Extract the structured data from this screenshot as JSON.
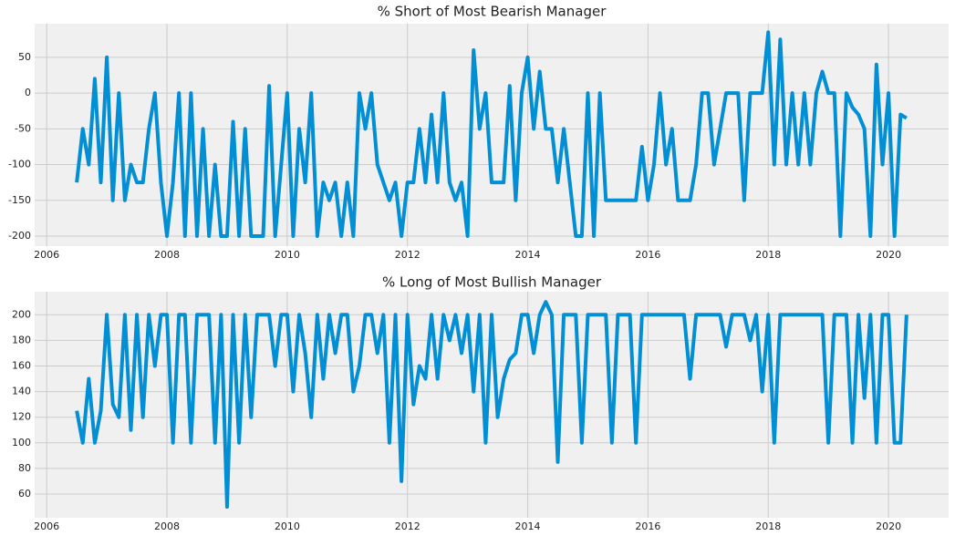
{
  "chart_data": [
    {
      "type": "line",
      "title": "% Short of Most Bearish Manager",
      "x": [
        2006.5,
        2006.6,
        2006.7,
        2006.8,
        2006.9,
        2007.0,
        2007.1,
        2007.2,
        2007.3,
        2007.4,
        2007.5,
        2007.6,
        2007.7,
        2007.8,
        2007.9,
        2008.0,
        2008.1,
        2008.2,
        2008.3,
        2008.4,
        2008.5,
        2008.6,
        2008.7,
        2008.8,
        2008.9,
        2009.0,
        2009.1,
        2009.2,
        2009.3,
        2009.4,
        2009.5,
        2009.6,
        2009.7,
        2009.8,
        2009.9,
        2010.0,
        2010.1,
        2010.2,
        2010.3,
        2010.4,
        2010.5,
        2010.6,
        2010.7,
        2010.8,
        2010.9,
        2011.0,
        2011.1,
        2011.2,
        2011.3,
        2011.4,
        2011.5,
        2011.6,
        2011.7,
        2011.8,
        2011.9,
        2012.0,
        2012.1,
        2012.2,
        2012.3,
        2012.4,
        2012.5,
        2012.6,
        2012.7,
        2012.8,
        2012.9,
        2013.0,
        2013.1,
        2013.2,
        2013.3,
        2013.4,
        2013.5,
        2013.6,
        2013.7,
        2013.8,
        2013.9,
        2014.0,
        2014.1,
        2014.2,
        2014.3,
        2014.4,
        2014.5,
        2014.6,
        2014.7,
        2014.8,
        2014.9,
        2015.0,
        2015.1,
        2015.2,
        2015.3,
        2015.4,
        2015.5,
        2015.6,
        2015.7,
        2015.8,
        2015.9,
        2016.0,
        2016.1,
        2016.2,
        2016.3,
        2016.4,
        2016.5,
        2016.6,
        2016.7,
        2016.8,
        2016.9,
        2017.0,
        2017.1,
        2017.2,
        2017.3,
        2017.4,
        2017.5,
        2017.6,
        2017.7,
        2017.8,
        2017.9,
        2018.0,
        2018.1,
        2018.2,
        2018.3,
        2018.4,
        2018.5,
        2018.6,
        2018.7,
        2018.8,
        2018.9,
        2019.0,
        2019.1,
        2019.2,
        2019.3,
        2019.4,
        2019.5,
        2019.6,
        2019.7,
        2019.8,
        2019.9,
        2020.0,
        2020.1,
        2020.2,
        2020.3
      ],
      "values": [
        -125,
        -50,
        -100,
        20,
        -125,
        50,
        -150,
        0,
        -150,
        -100,
        -125,
        -125,
        -50,
        0,
        -125,
        -200,
        -125,
        0,
        -200,
        0,
        -200,
        -50,
        -200,
        -100,
        -200,
        -200,
        -40,
        -200,
        -50,
        -200,
        -200,
        -200,
        10,
        -200,
        -100,
        0,
        -200,
        -50,
        -125,
        0,
        -200,
        -125,
        -150,
        -125,
        -200,
        -125,
        -200,
        0,
        -50,
        0,
        -100,
        -125,
        -150,
        -125,
        -200,
        -125,
        -125,
        -50,
        -125,
        -30,
        -125,
        0,
        -125,
        -150,
        -125,
        -200,
        60,
        -50,
        0,
        -125,
        -125,
        -125,
        10,
        -150,
        0,
        50,
        -50,
        30,
        -50,
        -50,
        -125,
        -50,
        -125,
        -200,
        -200,
        0,
        -200,
        0,
        -150,
        -150,
        -150,
        -150,
        -150,
        -150,
        -75,
        -150,
        -100,
        0,
        -100,
        -50,
        -150,
        -150,
        -150,
        -100,
        0,
        0,
        -100,
        -50,
        0,
        0,
        0,
        -150,
        0,
        0,
        0,
        85,
        -100,
        75,
        -100,
        0,
        -100,
        0,
        -100,
        0,
        30,
        0,
        0,
        -200,
        0,
        -20,
        -30,
        -50,
        -200,
        40,
        -100,
        0,
        -200,
        -30,
        -35
      ],
      "color": "#008fd5",
      "xlim": [
        2005.8,
        2021.0
      ],
      "ylim": [
        -214,
        97
      ],
      "xticks": [
        2006,
        2008,
        2010,
        2012,
        2014,
        2016,
        2018,
        2020
      ],
      "yticks": [
        -200,
        -150,
        -100,
        -50,
        0,
        50
      ],
      "grid": true
    },
    {
      "type": "line",
      "title": "% Long of Most Bullish Manager",
      "x": [
        2006.5,
        2006.6,
        2006.7,
        2006.8,
        2006.9,
        2007.0,
        2007.1,
        2007.2,
        2007.3,
        2007.4,
        2007.5,
        2007.6,
        2007.7,
        2007.8,
        2007.9,
        2008.0,
        2008.1,
        2008.2,
        2008.3,
        2008.4,
        2008.5,
        2008.6,
        2008.7,
        2008.8,
        2008.9,
        2009.0,
        2009.1,
        2009.2,
        2009.3,
        2009.4,
        2009.5,
        2009.6,
        2009.7,
        2009.8,
        2009.9,
        2010.0,
        2010.1,
        2010.2,
        2010.3,
        2010.4,
        2010.5,
        2010.6,
        2010.7,
        2010.8,
        2010.9,
        2011.0,
        2011.1,
        2011.2,
        2011.3,
        2011.4,
        2011.5,
        2011.6,
        2011.7,
        2011.8,
        2011.9,
        2012.0,
        2012.1,
        2012.2,
        2012.3,
        2012.4,
        2012.5,
        2012.6,
        2012.7,
        2012.8,
        2012.9,
        2013.0,
        2013.1,
        2013.2,
        2013.3,
        2013.4,
        2013.5,
        2013.6,
        2013.7,
        2013.8,
        2013.9,
        2014.0,
        2014.1,
        2014.2,
        2014.3,
        2014.4,
        2014.5,
        2014.6,
        2014.7,
        2014.8,
        2014.9,
        2015.0,
        2015.1,
        2015.2,
        2015.3,
        2015.4,
        2015.5,
        2015.6,
        2015.7,
        2015.8,
        2015.9,
        2016.0,
        2016.1,
        2016.2,
        2016.3,
        2016.4,
        2016.5,
        2016.6,
        2016.7,
        2016.8,
        2016.9,
        2017.0,
        2017.1,
        2017.2,
        2017.3,
        2017.4,
        2017.5,
        2017.6,
        2017.7,
        2017.8,
        2017.9,
        2018.0,
        2018.1,
        2018.2,
        2018.3,
        2018.4,
        2018.5,
        2018.6,
        2018.7,
        2018.8,
        2018.9,
        2019.0,
        2019.1,
        2019.2,
        2019.3,
        2019.4,
        2019.5,
        2019.6,
        2019.7,
        2019.8,
        2019.9,
        2020.0,
        2020.1,
        2020.2,
        2020.3
      ],
      "values": [
        125,
        100,
        150,
        100,
        125,
        200,
        130,
        120,
        200,
        110,
        200,
        120,
        200,
        160,
        200,
        200,
        100,
        200,
        200,
        100,
        200,
        200,
        200,
        100,
        200,
        50,
        200,
        100,
        200,
        120,
        200,
        200,
        200,
        160,
        200,
        200,
        140,
        200,
        170,
        120,
        200,
        150,
        200,
        170,
        200,
        200,
        140,
        160,
        200,
        200,
        170,
        200,
        100,
        200,
        70,
        200,
        130,
        160,
        150,
        200,
        150,
        200,
        180,
        200,
        170,
        200,
        140,
        200,
        100,
        200,
        120,
        150,
        165,
        170,
        200,
        200,
        170,
        200,
        210,
        200,
        85,
        200,
        200,
        200,
        100,
        200,
        200,
        200,
        200,
        100,
        200,
        200,
        200,
        100,
        200,
        200,
        200,
        200,
        200,
        200,
        200,
        200,
        150,
        200,
        200,
        200,
        200,
        200,
        175,
        200,
        200,
        200,
        180,
        200,
        140,
        200,
        100,
        200,
        200,
        200,
        200,
        200,
        200,
        200,
        200,
        100,
        200,
        200,
        200,
        100,
        200,
        135,
        200,
        100,
        200,
        200,
        100,
        100,
        200
      ],
      "color": "#008fd5",
      "xlim": [
        2005.8,
        2021.0
      ],
      "ylim": [
        41.5,
        218
      ],
      "xticks": [
        2006,
        2008,
        2010,
        2012,
        2014,
        2016,
        2018,
        2020
      ],
      "yticks": [
        60,
        80,
        100,
        120,
        140,
        160,
        180,
        200
      ],
      "grid": true
    }
  ]
}
